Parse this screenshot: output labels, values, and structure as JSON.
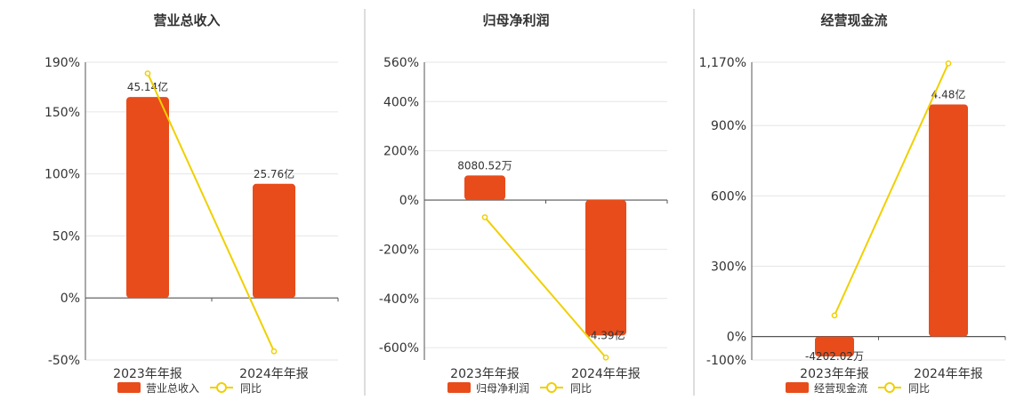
{
  "colors": {
    "bar": "#E84C1B",
    "line": "#F0D000",
    "grid": "#e6e6e6",
    "axis": "#555555",
    "divider": "#bbbbbb"
  },
  "chart_data": [
    {
      "type": "bar",
      "title": "营业总收入",
      "categories": [
        "2023年年报",
        "2024年年报"
      ],
      "ylim": [
        -50,
        190
      ],
      "yticks": [
        190,
        150,
        100,
        50,
        0,
        -50
      ],
      "ytick_labels": [
        "190%",
        "150%",
        "100%",
        "50%",
        "0%",
        "-50%"
      ],
      "series": [
        {
          "name": "营业总收入",
          "kind": "bar",
          "values": [
            162,
            92
          ],
          "labels": [
            "45.14亿",
            "25.76亿"
          ]
        },
        {
          "name": "同比",
          "kind": "line",
          "values": [
            181,
            -43
          ]
        }
      ],
      "grid": true,
      "legend": "bottom"
    },
    {
      "type": "bar",
      "title": "归母净利润",
      "categories": [
        "2023年年报",
        "2024年年报"
      ],
      "ylim": [
        -650,
        560
      ],
      "yticks": [
        560,
        400,
        200,
        0,
        -200,
        -400,
        -600
      ],
      "ytick_labels": [
        "560%",
        "400%",
        "200%",
        "0%",
        "-200%",
        "-400%",
        "-600%"
      ],
      "series": [
        {
          "name": "归母净利润",
          "kind": "bar",
          "values": [
            100,
            -550
          ],
          "labels": [
            "8080.52万",
            "-4.39亿"
          ]
        },
        {
          "name": "同比",
          "kind": "line",
          "values": [
            -70,
            -640
          ]
        }
      ],
      "grid": true,
      "legend": "bottom"
    },
    {
      "type": "bar",
      "title": "经营现金流",
      "categories": [
        "2023年年报",
        "2024年年报"
      ],
      "ylim": [
        -100,
        1170
      ],
      "yticks": [
        1170,
        900,
        600,
        300,
        0,
        -100
      ],
      "ytick_labels": [
        "1,170%",
        "900%",
        "600%",
        "300%",
        "0%",
        "-100%"
      ],
      "series": [
        {
          "name": "经营现金流",
          "kind": "bar",
          "values": [
            -85,
            990
          ],
          "labels": [
            "-4202.02万",
            "4.48亿"
          ]
        },
        {
          "name": "同比",
          "kind": "line",
          "values": [
            90,
            1165
          ]
        }
      ],
      "grid": true,
      "legend": "bottom"
    }
  ]
}
